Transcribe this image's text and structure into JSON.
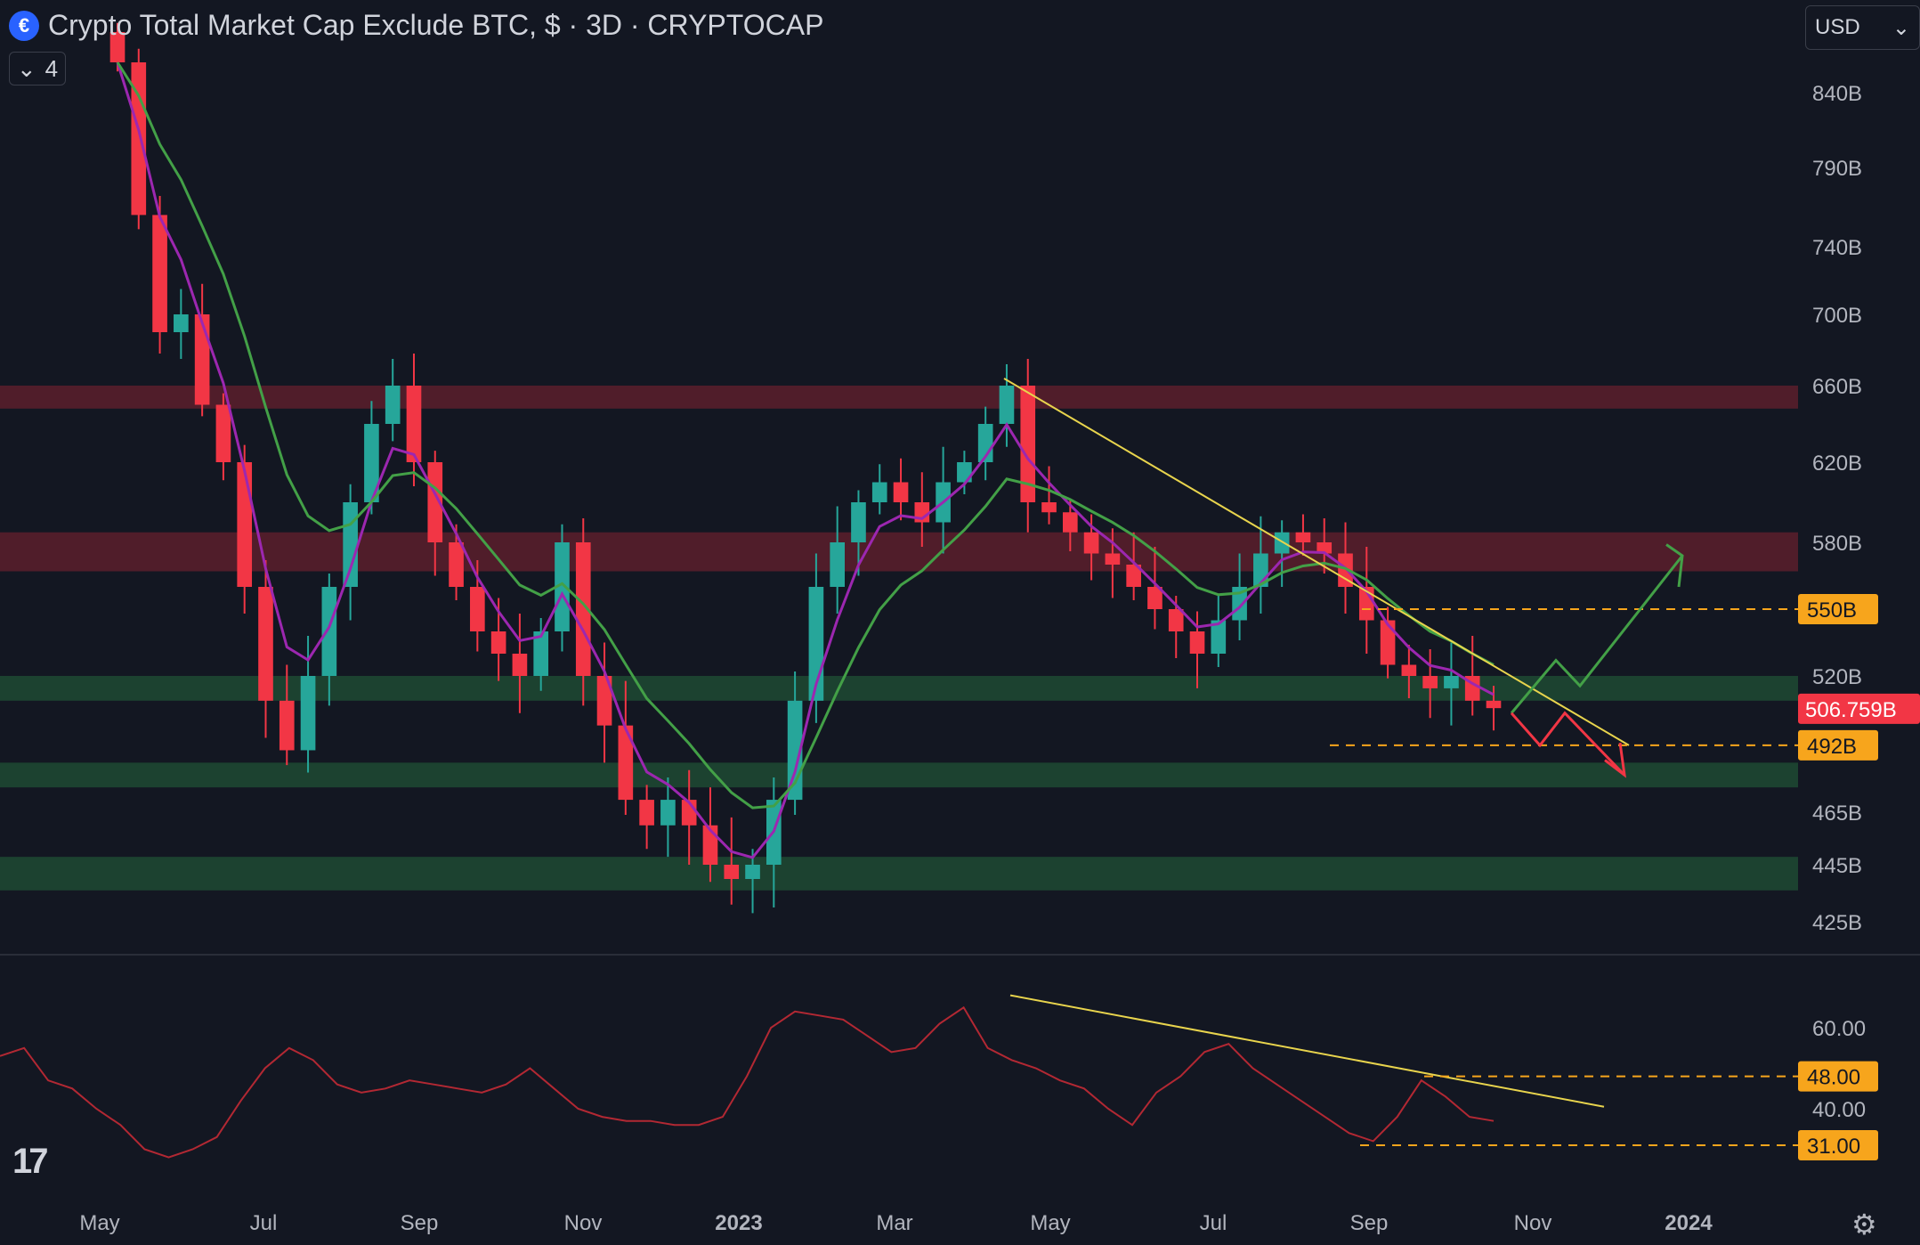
{
  "header": {
    "title": "Crypto Total Market Cap Exclude BTC, $ · 3D · CRYPTOCAP",
    "logo_icon": "cryptocap-logo-icon",
    "collapse_count": "4"
  },
  "currency_select": {
    "value": "USD"
  },
  "price_axis": {
    "ticks": [
      "840B",
      "790B",
      "740B",
      "700B",
      "660B",
      "620B",
      "580B",
      "520B",
      "465B",
      "445B",
      "425B"
    ],
    "tick_values": [
      840,
      790,
      740,
      700,
      660,
      620,
      580,
      520,
      465,
      445,
      425
    ],
    "last_price": "506.759B",
    "level_labels": [
      "550B",
      "492B"
    ],
    "level_values": [
      550,
      492
    ]
  },
  "oscillator_axis": {
    "ticks": [
      "60.00",
      "40.00"
    ],
    "tick_values": [
      60,
      40
    ],
    "level_labels": [
      "48.00",
      "31.00"
    ],
    "level_values": [
      48,
      31
    ]
  },
  "time_axis": {
    "labels": [
      "May",
      "Jul",
      "Sep",
      "Nov",
      "2023",
      "Mar",
      "May",
      "Jul",
      "Sep",
      "Nov",
      "2024"
    ]
  },
  "colors": {
    "background": "#131722",
    "up": "#26a69a",
    "down": "#f23645",
    "resistance_zone": "#5c1f2b",
    "support_zone": "#1f4a32",
    "trendline": "#e8d44d",
    "level_tag": "#f7a51c",
    "last_price_tag": "#f23645",
    "ema_fast": "#9c27b0",
    "ema_slow": "#43a047",
    "rsi": "#b22833"
  },
  "icons": {
    "tradingview": "tradingview-logo-icon",
    "settings": "gear-icon",
    "collapse": "chevron-down-icon",
    "currency_caret": "caret-down-icon"
  },
  "chart_data": {
    "type": "candlestick",
    "title": "Crypto Total Market Cap Exclude BTC, $ · 3D · CRYPTOCAP",
    "x_labels": [
      "May",
      "Jul",
      "Sep",
      "Nov",
      "2023",
      "Mar",
      "May",
      "Jul",
      "Sep",
      "Nov",
      "2024"
    ],
    "y_unit": "B USD",
    "ylim": [
      415,
      870
    ],
    "close_approx": [
      860,
      760,
      690,
      700,
      650,
      620,
      560,
      510,
      490,
      520,
      560,
      600,
      640,
      660,
      620,
      580,
      560,
      540,
      530,
      520,
      540,
      580,
      520,
      500,
      470,
      460,
      470,
      460,
      445,
      440,
      445,
      470,
      510,
      560,
      580,
      600,
      610,
      600,
      590,
      610,
      620,
      640,
      660,
      600,
      595,
      585,
      575,
      570,
      560,
      550,
      540,
      530,
      545,
      560,
      575,
      585,
      580,
      575,
      560,
      545,
      525,
      520,
      515,
      520,
      510,
      507
    ],
    "resistance_zones": [
      [
        648,
        660
      ],
      [
        567,
        585
      ]
    ],
    "support_zones": [
      [
        510,
        520
      ],
      [
        475,
        485
      ],
      [
        436,
        448
      ]
    ],
    "levels": [
      550,
      492
    ],
    "last_price": 506.759,
    "oscillator": {
      "ticks": [
        60,
        40
      ],
      "levels": [
        48,
        31
      ],
      "values_approx": [
        53,
        55,
        47,
        45,
        40,
        36,
        30,
        28,
        30,
        33,
        42,
        50,
        55,
        52,
        46,
        44,
        45,
        47,
        46,
        45,
        44,
        46,
        50,
        45,
        40,
        38,
        37,
        37,
        36,
        36,
        38,
        48,
        60,
        64,
        63,
        62,
        58,
        54,
        55,
        61,
        65,
        55,
        52,
        50,
        47,
        45,
        40,
        36,
        44,
        48,
        54,
        56,
        50,
        46,
        42,
        38,
        34,
        32,
        38,
        47,
        43,
        38,
        37
      ]
    },
    "trendline": "descending",
    "projection": [
      "up-arrow-scenario",
      "down-arrow-scenario"
    ]
  }
}
